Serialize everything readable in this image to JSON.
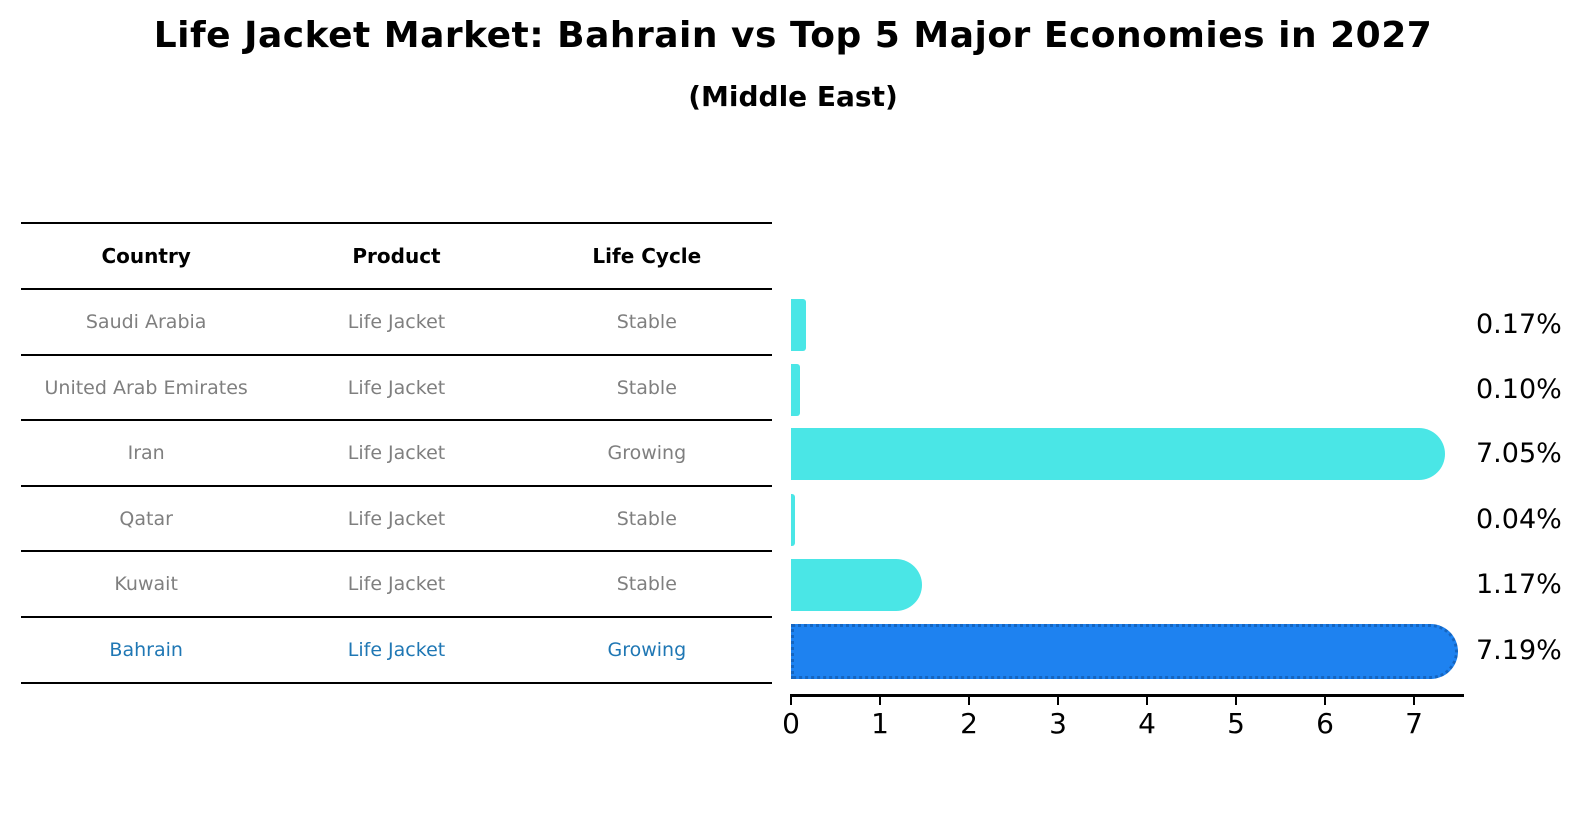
{
  "header": {
    "title": "Life Jacket Market: Bahrain vs Top 5 Major Economies in 2027",
    "subtitle": "(Middle East)"
  },
  "table": {
    "headers": [
      "Country",
      "Product",
      "Life Cycle"
    ]
  },
  "chart_data": {
    "type": "bar",
    "orientation": "horizontal",
    "title": "Life Jacket Market: Bahrain vs Top 5 Major Economies in 2027",
    "subtitle": "(Middle East)",
    "categories": [
      "Saudi Arabia",
      "United Arab Emirates",
      "Iran",
      "Qatar",
      "Kuwait",
      "Bahrain"
    ],
    "values": [
      0.17,
      0.1,
      7.05,
      0.04,
      1.17,
      7.19
    ],
    "bar_labels": [
      "0.17%",
      "0.10%",
      "7.05%",
      "0.04%",
      "1.17%",
      "7.19%"
    ],
    "rows": [
      {
        "country": "Saudi Arabia",
        "product": "Life Jacket",
        "life_cycle": "Stable",
        "value": 0.17,
        "pct_label": "0.17%",
        "highlighted": false
      },
      {
        "country": "United Arab Emirates",
        "product": "Life Jacket",
        "life_cycle": "Stable",
        "value": 0.1,
        "pct_label": "0.10%",
        "highlighted": false
      },
      {
        "country": "Iran",
        "product": "Life Jacket",
        "life_cycle": "Growing",
        "value": 7.05,
        "pct_label": "7.05%",
        "highlighted": false
      },
      {
        "country": "Qatar",
        "product": "Life Jacket",
        "life_cycle": "Stable",
        "value": 0.04,
        "pct_label": "0.04%",
        "highlighted": false
      },
      {
        "country": "Kuwait",
        "product": "Life Jacket",
        "life_cycle": "Stable",
        "value": 1.17,
        "pct_label": "1.17%",
        "highlighted": false
      },
      {
        "country": "Bahrain",
        "product": "Life Jacket",
        "life_cycle": "Growing",
        "value": 7.19,
        "pct_label": "7.19%",
        "highlighted": true
      }
    ],
    "xlim": [
      0,
      7.55
    ],
    "xticks": [
      "0",
      "1",
      "2",
      "3",
      "4",
      "5",
      "6",
      "7"
    ],
    "grid": false,
    "legend": false,
    "colors": {
      "bar_color": "#4ae6e6",
      "highlight_bar_color": "#1e82f0",
      "highlight_border_color": "#1565c0",
      "highlight_text_color": "#1f77b4",
      "row_text_color": "#7f7f7f",
      "axis_color": "#000000"
    }
  }
}
